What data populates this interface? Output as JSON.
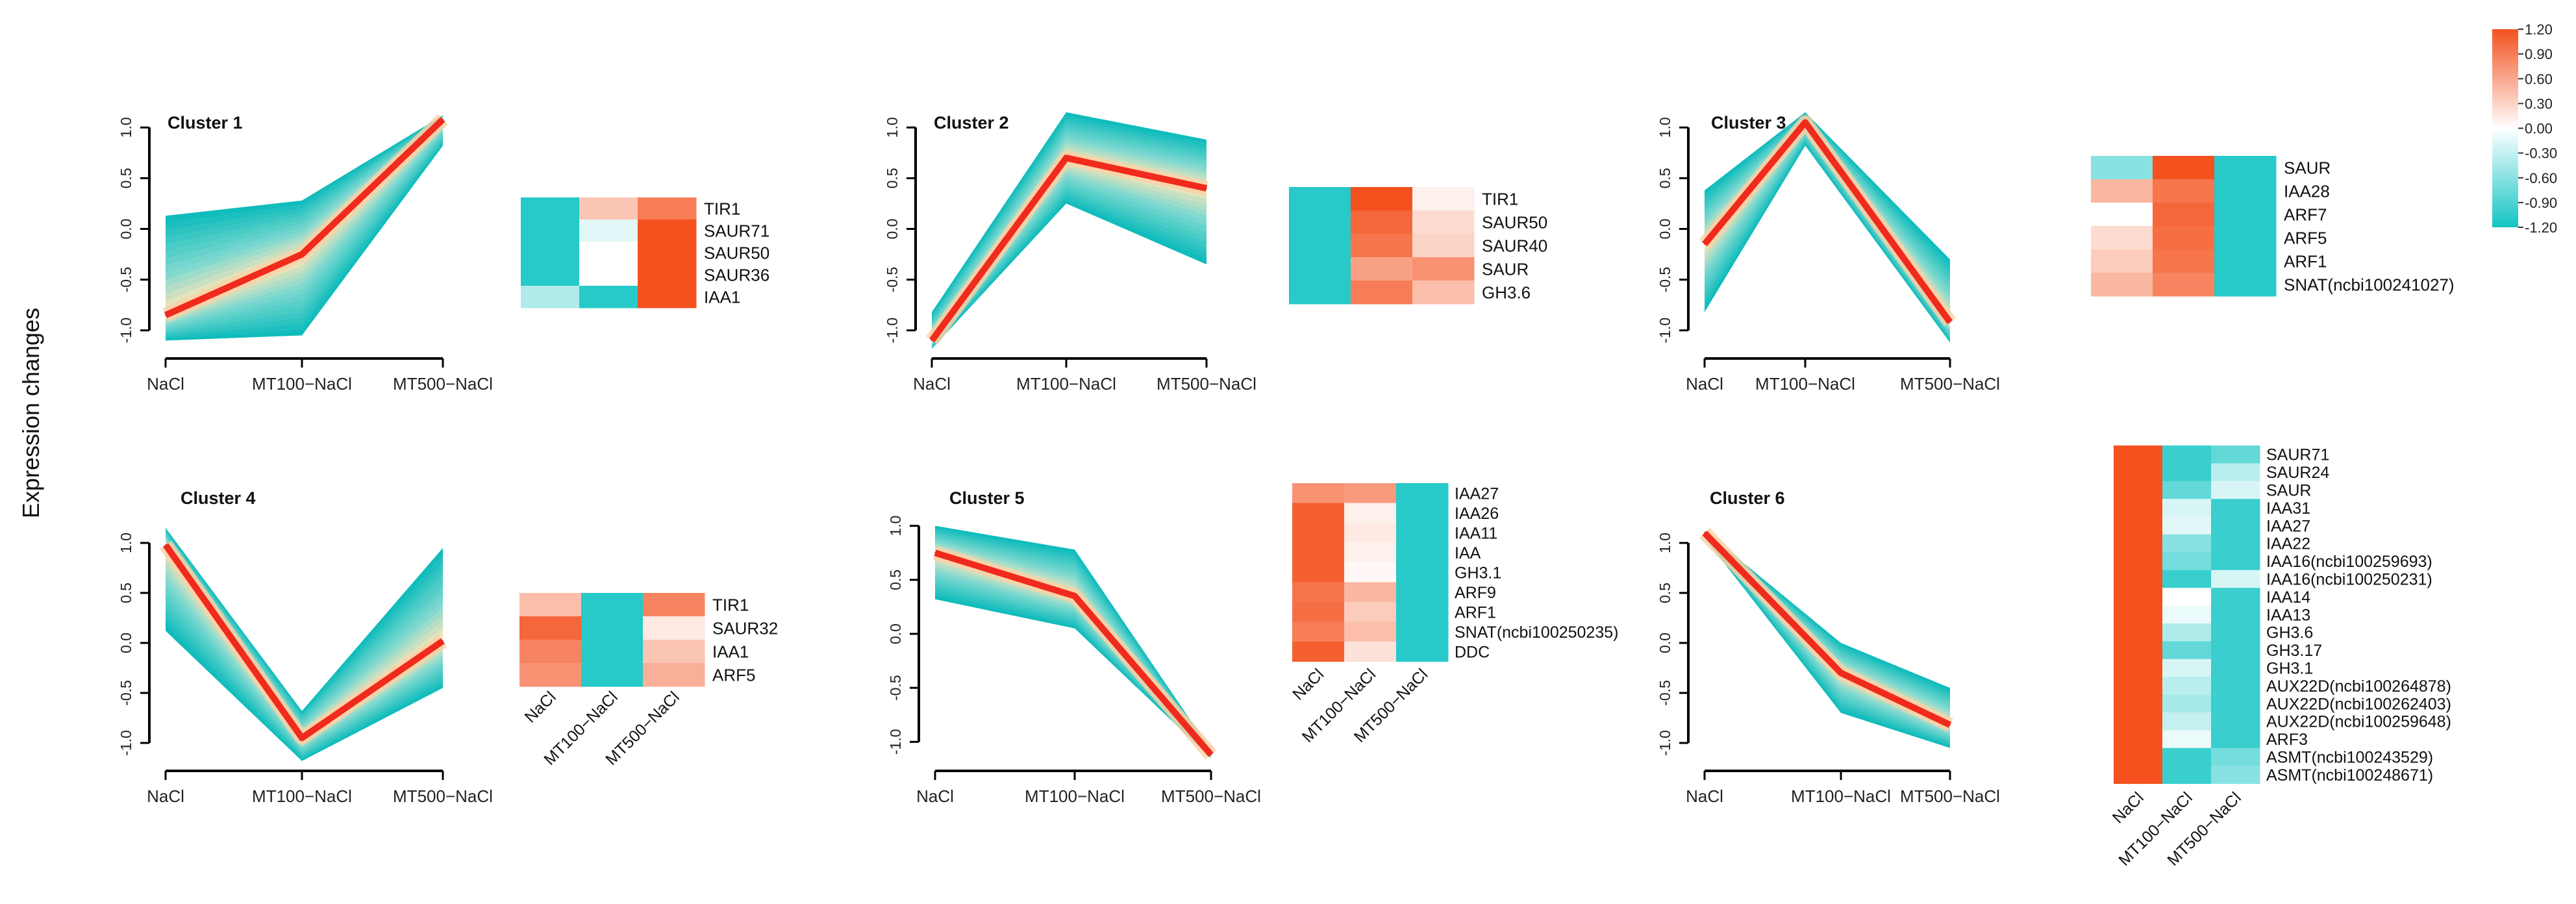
{
  "figure": {
    "ylabel": "Expression changes",
    "colorscale": {
      "ticks": [
        "1.20",
        "0.90",
        "0.60",
        "0.30",
        "0.00",
        "-0.30",
        "-0.60",
        "-0.90",
        "-1.20"
      ],
      "high_color": "#f4511e",
      "mid_color": "#ffffff",
      "low_color": "#13c4c4"
    },
    "line_color": "#f02a1c",
    "ribbon_light": "#fbe5b7",
    "ribbon_dark": "#10bcbc"
  },
  "chart_data": [
    {
      "type": "line",
      "title": "Cluster 1",
      "x": [
        "NaCl",
        "MT100−NaCl",
        "MT500−NaCl"
      ],
      "ylim": [
        -1.0,
        1.0
      ],
      "yticks": [
        "-1.0",
        "-0.5",
        "0.0",
        "0.5",
        "1.0"
      ],
      "ylabel": "Expression changes",
      "mean": [
        -0.85,
        -0.25,
        1.08
      ],
      "upper": [
        0.13,
        0.28,
        1.12
      ],
      "lower": [
        -1.1,
        -1.05,
        0.82
      ],
      "heatmap": {
        "rows": [
          "TIR1",
          "SAUR71",
          "SAUR50",
          "SAUR36",
          "IAA1"
        ],
        "cols": [
          "NaCl",
          "MT100−NaCl",
          "MT500−NaCl"
        ],
        "values": [
          [
            -1.1,
            0.4,
            0.9
          ],
          [
            -1.1,
            -0.15,
            1.2
          ],
          [
            -1.1,
            0.0,
            1.2
          ],
          [
            -1.1,
            0.0,
            1.2
          ],
          [
            -0.4,
            -1.1,
            1.2
          ]
        ],
        "show_col_labels": false
      }
    },
    {
      "type": "line",
      "title": "Cluster 2",
      "x": [
        "NaCl",
        "MT100−NaCl",
        "MT500−NaCl"
      ],
      "ylim": [
        -1.0,
        1.0
      ],
      "yticks": [
        "-1.0",
        "-0.5",
        "0.0",
        "0.5",
        "1.0"
      ],
      "mean": [
        -1.1,
        0.7,
        0.4
      ],
      "upper": [
        -0.82,
        1.15,
        0.88
      ],
      "lower": [
        -1.18,
        0.25,
        -0.35
      ],
      "heatmap": {
        "rows": [
          "TIR1",
          "SAUR50",
          "SAUR40",
          "SAUR",
          "GH3.6"
        ],
        "cols": [
          "NaCl",
          "MT100−NaCl",
          "MT500−NaCl"
        ],
        "values": [
          [
            -1.1,
            1.2,
            0.1
          ],
          [
            -1.1,
            1.05,
            0.25
          ],
          [
            -1.1,
            0.95,
            0.3
          ],
          [
            -1.1,
            0.65,
            0.75
          ],
          [
            -1.1,
            0.9,
            0.45
          ]
        ],
        "show_col_labels": false
      }
    },
    {
      "type": "line",
      "title": "Cluster 3",
      "x": [
        "NaCl",
        "MT100−NaCl",
        "MT500−NaCl"
      ],
      "ylim": [
        -1.0,
        1.0
      ],
      "yticks": [
        "-1.0",
        "-0.5",
        "0.0",
        "0.5",
        "1.0"
      ],
      "mean": [
        -0.15,
        1.05,
        -0.92
      ],
      "upper": [
        0.38,
        1.15,
        -0.3
      ],
      "lower": [
        -0.82,
        0.82,
        -1.12
      ],
      "heatmap": {
        "rows": [
          "SAUR",
          "IAA28",
          "ARF7",
          "ARF5",
          "ARF1",
          "SNAT(ncbi100241027)"
        ],
        "cols": [
          "NaCl",
          "MT100−NaCl",
          "MT500−NaCl"
        ],
        "values": [
          [
            -0.6,
            1.2,
            -1.1
          ],
          [
            0.5,
            0.95,
            -1.1
          ],
          [
            0.0,
            1.05,
            -1.1
          ],
          [
            0.25,
            1.0,
            -1.1
          ],
          [
            0.35,
            0.95,
            -1.1
          ],
          [
            0.5,
            0.85,
            -1.1
          ]
        ],
        "show_col_labels": false
      }
    },
    {
      "type": "line",
      "title": "Cluster 4",
      "x": [
        "NaCl",
        "MT100−NaCl",
        "MT500−NaCl"
      ],
      "ylim": [
        -1.0,
        1.0
      ],
      "yticks": [
        "-1.0",
        "-0.5",
        "0.0",
        "0.5",
        "1.0"
      ],
      "mean": [
        0.98,
        -0.95,
        0.02
      ],
      "upper": [
        1.15,
        -0.68,
        0.95
      ],
      "lower": [
        0.12,
        -1.18,
        -0.45
      ],
      "heatmap": {
        "rows": [
          "TIR1",
          "SAUR32",
          "IAA1",
          "ARF5"
        ],
        "cols": [
          "NaCl",
          "MT100−NaCl",
          "MT500−NaCl"
        ],
        "values": [
          [
            0.45,
            -1.1,
            0.85
          ],
          [
            1.05,
            -1.1,
            0.15
          ],
          [
            0.85,
            -1.1,
            0.4
          ],
          [
            0.75,
            -1.1,
            0.55
          ]
        ],
        "show_col_labels": true
      }
    },
    {
      "type": "line",
      "title": "Cluster 5",
      "x": [
        "NaCl",
        "MT100−NaCl",
        "MT500−NaCl"
      ],
      "ylim": [
        -1.0,
        1.0
      ],
      "yticks": [
        "-1.0",
        "-0.5",
        "0.0",
        "0.5",
        "1.0"
      ],
      "mean": [
        0.75,
        0.35,
        -1.12
      ],
      "upper": [
        1.0,
        0.78,
        -1.08
      ],
      "lower": [
        0.32,
        0.05,
        -1.15
      ],
      "heatmap": {
        "rows": [
          "IAA27",
          "IAA26",
          "IAA11",
          "IAA",
          "GH3.1",
          "ARF9",
          "ARF1",
          "SNAT(ncbi100250235)",
          "DDC"
        ],
        "cols": [
          "NaCl",
          "MT100−NaCl",
          "MT500−NaCl"
        ],
        "values": [
          [
            0.75,
            0.7,
            -1.1
          ],
          [
            1.1,
            0.1,
            -1.1
          ],
          [
            1.1,
            0.15,
            -1.1
          ],
          [
            1.1,
            0.1,
            -1.1
          ],
          [
            1.1,
            0.05,
            -1.1
          ],
          [
            0.95,
            0.5,
            -1.1
          ],
          [
            1.0,
            0.35,
            -1.1
          ],
          [
            0.9,
            0.45,
            -1.1
          ],
          [
            1.1,
            0.2,
            -1.1
          ]
        ],
        "show_col_labels": true
      }
    },
    {
      "type": "line",
      "title": "Cluster 6",
      "x": [
        "NaCl",
        "MT100−NaCl",
        "MT500−NaCl"
      ],
      "ylim": [
        -1.0,
        1.0
      ],
      "yticks": [
        "-1.0",
        "-0.5",
        "0.0",
        "0.5",
        "1.0"
      ],
      "mean": [
        1.1,
        -0.3,
        -0.82
      ],
      "upper": [
        1.12,
        0.0,
        -0.45
      ],
      "lower": [
        1.05,
        -0.7,
        -1.05
      ],
      "heatmap": {
        "rows": [
          "SAUR71",
          "SAUR24",
          "SAUR",
          "IAA31",
          "IAA27",
          "IAA22",
          "IAA16(ncbi100259693)",
          "IAA16(ncbi100250231)",
          "IAA14",
          "IAA13",
          "GH3.6",
          "GH3.17",
          "GH3.1",
          "AUX22D(ncbi100264878)",
          "AUX22D(ncbi100262403)",
          "AUX22D(ncbi100259648)",
          "ARF3",
          "ASMT(ncbi100243529)",
          "ASMT(ncbi100248671)"
        ],
        "cols": [
          "NaCl",
          "MT100−NaCl",
          "MT500−NaCl"
        ],
        "values": [
          [
            1.2,
            -1.0,
            -0.8
          ],
          [
            1.2,
            -1.0,
            -0.35
          ],
          [
            1.2,
            -0.8,
            -0.2
          ],
          [
            1.2,
            -0.2,
            -1.0
          ],
          [
            1.2,
            -0.15,
            -1.0
          ],
          [
            1.2,
            -0.6,
            -1.0
          ],
          [
            1.2,
            -0.7,
            -1.0
          ],
          [
            1.2,
            -1.0,
            -0.2
          ],
          [
            1.2,
            0.0,
            -1.0
          ],
          [
            1.2,
            -0.1,
            -1.0
          ],
          [
            1.2,
            -0.4,
            -1.0
          ],
          [
            1.2,
            -0.8,
            -1.0
          ],
          [
            1.2,
            -0.2,
            -1.0
          ],
          [
            1.2,
            -0.35,
            -1.0
          ],
          [
            1.2,
            -0.45,
            -1.0
          ],
          [
            1.2,
            -0.3,
            -1.0
          ],
          [
            1.2,
            -0.1,
            -1.0
          ],
          [
            1.2,
            -1.0,
            -0.7
          ],
          [
            1.2,
            -1.0,
            -0.6
          ]
        ],
        "show_col_labels": true
      }
    }
  ]
}
